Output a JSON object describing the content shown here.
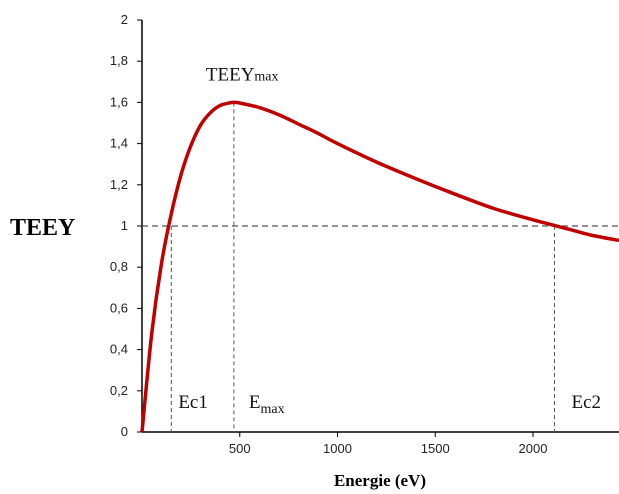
{
  "chart_data": {
    "type": "line",
    "ylabel": "TEEY",
    "xlabel": "Energie (eV)",
    "xlim": [
      0,
      2440
    ],
    "ylim": [
      0,
      2
    ],
    "x_ticks": [
      {
        "value": 500,
        "label": "500"
      },
      {
        "value": 1000,
        "label": "1000"
      },
      {
        "value": 1500,
        "label": "1500"
      },
      {
        "value": 2000,
        "label": "2000"
      }
    ],
    "y_ticks": [
      {
        "value": 0,
        "label": "0"
      },
      {
        "value": 0.2,
        "label": "0,2"
      },
      {
        "value": 0.4,
        "label": "0,4"
      },
      {
        "value": 0.6,
        "label": "0,6"
      },
      {
        "value": 0.8,
        "label": "0,8"
      },
      {
        "value": 1,
        "label": "1"
      },
      {
        "value": 1.2,
        "label": "1,2"
      },
      {
        "value": 1.4,
        "label": "1,4"
      },
      {
        "value": 1.6,
        "label": "1,6"
      },
      {
        "value": 1.8,
        "label": "1,8"
      },
      {
        "value": 2,
        "label": "2"
      }
    ],
    "series": [
      {
        "color": "#c00000",
        "x": [
          0,
          50,
          100,
          150,
          200,
          250,
          300,
          350,
          400,
          450,
          470,
          500,
          600,
          700,
          800,
          900,
          1000,
          1200,
          1400,
          1600,
          1800,
          2000,
          2100,
          2200,
          2300,
          2440
        ],
        "y": [
          0,
          0.48,
          0.82,
          1.06,
          1.25,
          1.39,
          1.49,
          1.55,
          1.585,
          1.598,
          1.6,
          1.597,
          1.575,
          1.54,
          1.495,
          1.45,
          1.4,
          1.31,
          1.23,
          1.155,
          1.085,
          1.03,
          1.005,
          0.98,
          0.955,
          0.93
        ]
      }
    ],
    "reference_lines": {
      "horizontal": [
        {
          "y": 1
        }
      ],
      "vertical": [
        {
          "x": 150,
          "y_top": 1.0
        },
        {
          "x": 470,
          "y_top": 1.6
        },
        {
          "x": 2110,
          "y_top": 1.0
        }
      ]
    },
    "annotations": {
      "peak": {
        "text": "TEEY",
        "sub": "max",
        "x": 470,
        "y": 1.6
      },
      "ec1": {
        "text": "Ec1",
        "x": 150
      },
      "emax": {
        "text": "E",
        "sub": "max",
        "x": 470
      },
      "ec2": {
        "text": "Ec2",
        "x": 2110
      }
    },
    "colors": {
      "curve": "#c00000",
      "axis": "#000000",
      "reference": "#555555"
    }
  }
}
